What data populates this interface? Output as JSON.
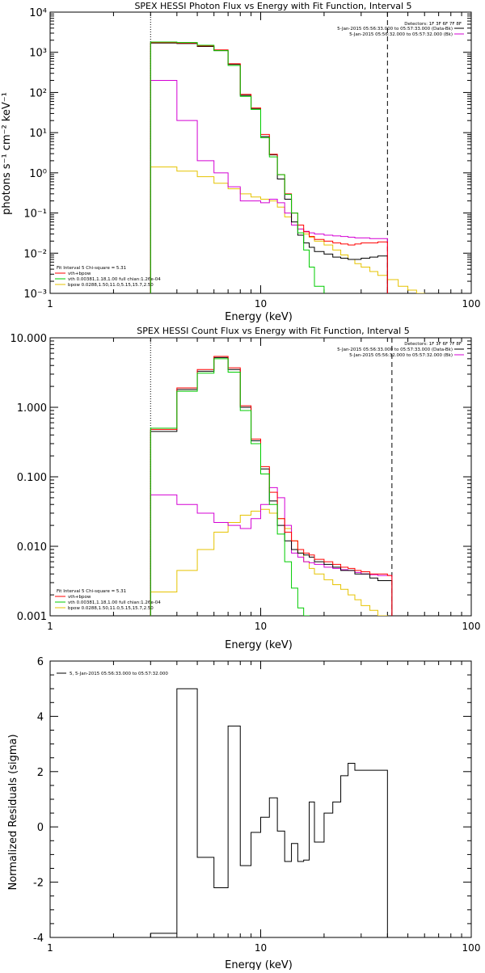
{
  "colors": {
    "data": "#000000",
    "vth": "#ff0000",
    "fit_total": "#00cc00",
    "vth2": "#00cc00",
    "bpow": "#e6c300",
    "background": "#d400d4"
  },
  "chart_data": [
    {
      "type": "line",
      "step": true,
      "title": "SPEX HESSI Photon Flux vs Energy with Fit Function, Interval 5",
      "xlabel": "Energy (keV)",
      "ylabel": "photons s⁻¹ cm⁻² keV⁻¹",
      "xscale": "log",
      "yscale": "log",
      "xlim": [
        1,
        100
      ],
      "ylim": [
        0.001,
        10000
      ],
      "xticks": [
        "1",
        "10",
        "100"
      ],
      "yticks": [
        "10⁻³",
        "10⁻²",
        "10⁻¹",
        "10⁰",
        "10¹",
        "10²",
        "10³",
        "10⁴"
      ],
      "vlines": [
        3,
        40
      ],
      "legend_topright": [
        "Detectors: 1F 3F 6F 7F 8F",
        "5-Jan-2015 05:56:33.000 to 05:57:33.000 (Data-Bk)",
        "5-Jan-2015 05:56:32.000 to 05:57:32.000 (Bk)"
      ],
      "legend_bottomleft": [
        "Fit Interval 5   Chi-square = 5.31",
        "vth+bpow",
        "vth 0.00381,1.18,1.00  full chian:1.26e-04",
        "bpow 0.0288,1.50,11.0,5.15,15.7,2.50"
      ],
      "edges": [
        3,
        4,
        5,
        6,
        7,
        8,
        9,
        10,
        11,
        12,
        13,
        14,
        15,
        16,
        17,
        18,
        20,
        22,
        24,
        26,
        28,
        30,
        33,
        36,
        40,
        45,
        50,
        55,
        60,
        66,
        72
      ],
      "series": [
        {
          "key": "data",
          "values": [
            1700,
            1650,
            1400,
            1100,
            500,
            85,
            39,
            8,
            2.8,
            0.7,
            0.22,
            0.06,
            0.028,
            0.018,
            0.014,
            0.011,
            0.0095,
            0.008,
            0.0075,
            0.007,
            0.007,
            0.0075,
            0.008,
            0.0085
          ]
        },
        {
          "key": "vth",
          "values": [
            1750,
            1700,
            1450,
            1150,
            520,
            90,
            41,
            9,
            2.9,
            0.9,
            0.3,
            0.1,
            0.05,
            0.034,
            0.026,
            0.022,
            0.02,
            0.018,
            0.017,
            0.016,
            0.017,
            0.018,
            0.018,
            0.019
          ]
        },
        {
          "key": "fit_total",
          "values": [
            1800,
            1750,
            1500,
            1100,
            470,
            80,
            38,
            7.5,
            2.5,
            0.9,
            0.29,
            0.1,
            0.032,
            0.012,
            0.0045,
            0.0015,
            0.0004
          ]
        },
        {
          "key": "background",
          "values": [
            200,
            20,
            2,
            1,
            0.45,
            0.2,
            0.2,
            0.18,
            0.22,
            0.18,
            0.1,
            0.05,
            0.04,
            0.035,
            0.032,
            0.03,
            0.028,
            0.027,
            0.026,
            0.025,
            0.024,
            0.024,
            0.023,
            0.023
          ]
        },
        {
          "key": "bpow",
          "values": [
            1.4,
            1.1,
            0.8,
            0.55,
            0.4,
            0.3,
            0.25,
            0.22,
            0.2,
            0.14,
            0.08,
            0.05,
            0.04,
            0.03,
            0.025,
            0.02,
            0.016,
            0.012,
            0.009,
            0.007,
            0.0055,
            0.0045,
            0.0035,
            0.0028,
            0.0022,
            0.0015,
            0.0012,
            0.001,
            0.0008,
            0.0006
          ]
        }
      ]
    },
    {
      "type": "line",
      "step": true,
      "title": "SPEX HESSI Count Flux vs Energy with Fit Function, Interval 5",
      "xlabel": "Energy (keV)",
      "ylabel": "",
      "xscale": "log",
      "yscale": "log",
      "xlim": [
        1,
        100
      ],
      "ylim": [
        0.001,
        10
      ],
      "xticks": [
        "1",
        "10",
        "100"
      ],
      "yticks": [
        "0.001",
        "0.010",
        "0.100",
        "1.000",
        "10.000"
      ],
      "vlines": [
        3,
        42
      ],
      "legend_topright": [
        "Detectors: 1F 3F 6F 7F 8F",
        "5-Jan-2015 05:56:33.000 to 05:57:33.000 (Data-Bk)",
        "5-Jan-2015 05:56:32.000 to 05:57:32.000 (Bk)"
      ],
      "legend_bottomleft": [
        "Fit Interval 5   Chi-square = 5.31",
        "vth+bpow",
        "vth 0.00381,1.18,1.00  full chian:1.26e-04",
        "bpow 0.0288,1.50,11.0,5.15,15.7,2.50"
      ],
      "edges": [
        3,
        4,
        5,
        6,
        7,
        8,
        9,
        10,
        11,
        12,
        13,
        14,
        15,
        16,
        17,
        18,
        20,
        22,
        24,
        26,
        28,
        30,
        33,
        36,
        40,
        42
      ],
      "series": [
        {
          "key": "data",
          "values": [
            0.45,
            1.8,
            3.3,
            5.2,
            3.5,
            1.0,
            0.33,
            0.13,
            0.045,
            0.02,
            0.012,
            0.009,
            0.008,
            0.0075,
            0.007,
            0.006,
            0.0055,
            0.005,
            0.0045,
            0.0045,
            0.004,
            0.004,
            0.0035,
            0.0032,
            0.0032
          ]
        },
        {
          "key": "vth",
          "values": [
            0.48,
            1.9,
            3.5,
            5.4,
            3.7,
            1.05,
            0.35,
            0.14,
            0.06,
            0.025,
            0.016,
            0.012,
            0.009,
            0.008,
            0.0075,
            0.0065,
            0.006,
            0.0055,
            0.005,
            0.0048,
            0.0045,
            0.0043,
            0.004,
            0.004,
            0.0038
          ]
        },
        {
          "key": "fit_total",
          "values": [
            0.5,
            1.7,
            3.1,
            5.0,
            3.2,
            0.9,
            0.3,
            0.11,
            0.04,
            0.015,
            0.006,
            0.0025,
            0.0013,
            0.001
          ]
        },
        {
          "key": "background",
          "values": [
            0.055,
            0.04,
            0.03,
            0.022,
            0.02,
            0.018,
            0.025,
            0.04,
            0.07,
            0.05,
            0.02,
            0.008,
            0.007,
            0.006,
            0.0058,
            0.0055,
            0.005,
            0.0048,
            0.0046,
            0.0045,
            0.0042,
            0.004,
            0.0039,
            0.0038,
            0.0038
          ]
        },
        {
          "key": "bpow",
          "values": [
            0.0022,
            0.0045,
            0.009,
            0.016,
            0.022,
            0.028,
            0.032,
            0.034,
            0.03,
            0.025,
            0.018,
            0.012,
            0.008,
            0.006,
            0.0048,
            0.004,
            0.0033,
            0.0028,
            0.0024,
            0.002,
            0.0017,
            0.0014,
            0.0012,
            0.001
          ]
        }
      ]
    },
    {
      "type": "line",
      "step": true,
      "title": "",
      "xlabel": "Energy (keV)",
      "ylabel": "Normalized Residuals (sigma)",
      "xscale": "log",
      "yscale": "linear",
      "xlim": [
        1,
        100
      ],
      "ylim": [
        -4,
        6
      ],
      "xticks": [
        "1",
        "10",
        "100"
      ],
      "yticks": [
        "-4",
        "-2",
        "0",
        "2",
        "4",
        "6"
      ],
      "vlines": [],
      "legend_topleft": [
        "5,  5-Jan-2015 05:56:33.000 to 05:57:32.000"
      ],
      "edges": [
        3,
        4,
        5,
        6,
        7,
        8,
        9,
        10,
        11,
        12,
        13,
        14,
        15,
        16,
        17,
        18,
        20,
        22,
        24,
        26,
        28,
        30,
        33,
        36,
        40
      ],
      "series": [
        {
          "key": "data",
          "values": [
            -3.85,
            5.0,
            -1.1,
            -2.2,
            3.65,
            -1.4,
            -0.2,
            0.35,
            1.05,
            -0.15,
            -1.25,
            -0.6,
            -1.25,
            -1.2,
            0.9,
            -0.55,
            0.5,
            0.9,
            1.85,
            2.3,
            2.05,
            2.05,
            2.05,
            2.05
          ]
        }
      ]
    }
  ]
}
